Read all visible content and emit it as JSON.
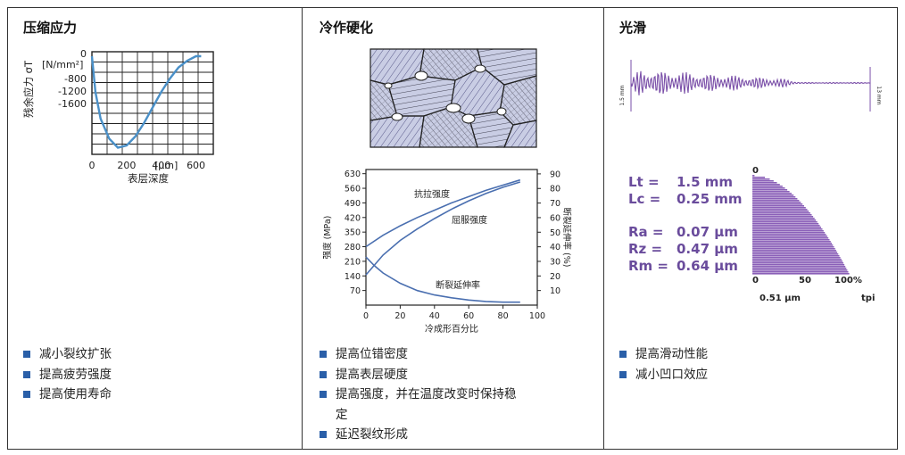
{
  "panels": [
    {
      "title": "压缩应力",
      "bullets": [
        "减小裂纹扩张",
        "提高疲劳强度",
        "提高使用寿命"
      ]
    },
    {
      "title": "冷作硬化",
      "bullets": [
        "提高位错密度",
        "提高表层硬度",
        "提高强度，并在温度改变时保持稳",
        "定",
        "延迟裂纹形成"
      ]
    },
    {
      "title": "光滑",
      "bullets": [
        "提高滑动性能",
        "减小凹口效应"
      ]
    }
  ],
  "colors": {
    "accent": "#2a5fa8",
    "curve": "#4a90c8",
    "purple": "#7a4fa8"
  },
  "chart_data": [
    {
      "type": "line",
      "title": "",
      "ylabel": "残余应力 σT",
      "yunit": "[N/mm²]",
      "xlabel": "表层深度",
      "xunit": "[µm]",
      "xticks": [
        "0",
        "200",
        "400",
        "600"
      ],
      "yticks": [
        "0",
        "-800",
        "-1200",
        "-1600"
      ],
      "xlim": [
        0,
        700
      ],
      "grid": true,
      "series": [
        {
          "name": "",
          "x": [
            0,
            20,
            50,
            100,
            150,
            200,
            250,
            300,
            350,
            400,
            450,
            500,
            550,
            600,
            630
          ],
          "y": [
            -100,
            -900,
            -1500,
            -1950,
            -2150,
            -2100,
            -1900,
            -1600,
            -1250,
            -900,
            -600,
            -350,
            -200,
            -100,
            -100
          ]
        }
      ]
    },
    {
      "type": "line",
      "xlabel": "冷成形百分比",
      "ylabel_left": "强度 (MPa)",
      "ylabel_right": "断裂延伸率 (%)",
      "xticks": [
        0,
        20,
        40,
        60,
        80,
        100
      ],
      "yticks_left": [
        70,
        140,
        210,
        280,
        350,
        420,
        490,
        560,
        630
      ],
      "yticks_right": [
        10,
        20,
        30,
        40,
        50,
        60,
        70,
        80,
        90
      ],
      "xlim": [
        0,
        100
      ],
      "ylim_left": [
        0,
        650
      ],
      "ylim_right": [
        0,
        93
      ],
      "series": [
        {
          "name": "抗拉强度",
          "x": [
            0,
            10,
            20,
            30,
            40,
            50,
            60,
            70,
            80,
            90
          ],
          "y": [
            280,
            335,
            380,
            420,
            455,
            490,
            520,
            550,
            575,
            600
          ]
        },
        {
          "name": "屈服强度",
          "x": [
            0,
            10,
            20,
            30,
            40,
            50,
            60,
            70,
            80,
            90
          ],
          "y": [
            145,
            240,
            310,
            365,
            415,
            460,
            500,
            535,
            565,
            590
          ]
        },
        {
          "name": "断裂延伸率",
          "x": [
            0,
            5,
            10,
            20,
            30,
            40,
            50,
            60,
            70,
            80,
            90
          ],
          "y_right": [
            33,
            27,
            22,
            15,
            10,
            7,
            5,
            3.5,
            2.5,
            2,
            2
          ]
        }
      ]
    },
    {
      "type": "area",
      "profile_scale_left": "1.5 mm",
      "profile_scale_right": "13 mm",
      "params": [
        {
          "label": "Lt =",
          "value": "1.5 mm"
        },
        {
          "label": "Lc =",
          "value": "0.25 mm"
        },
        {
          "label": "Ra =",
          "value": "0.07 µm"
        },
        {
          "label": "Rz =",
          "value": "0.47 µm"
        },
        {
          "label": "Rm =",
          "value": "0.64 µm"
        }
      ],
      "top_label": "0",
      "xticks": [
        "0",
        "50",
        "100%"
      ],
      "bottom_left": "0.51 µm",
      "bottom_right": "tpi"
    }
  ]
}
